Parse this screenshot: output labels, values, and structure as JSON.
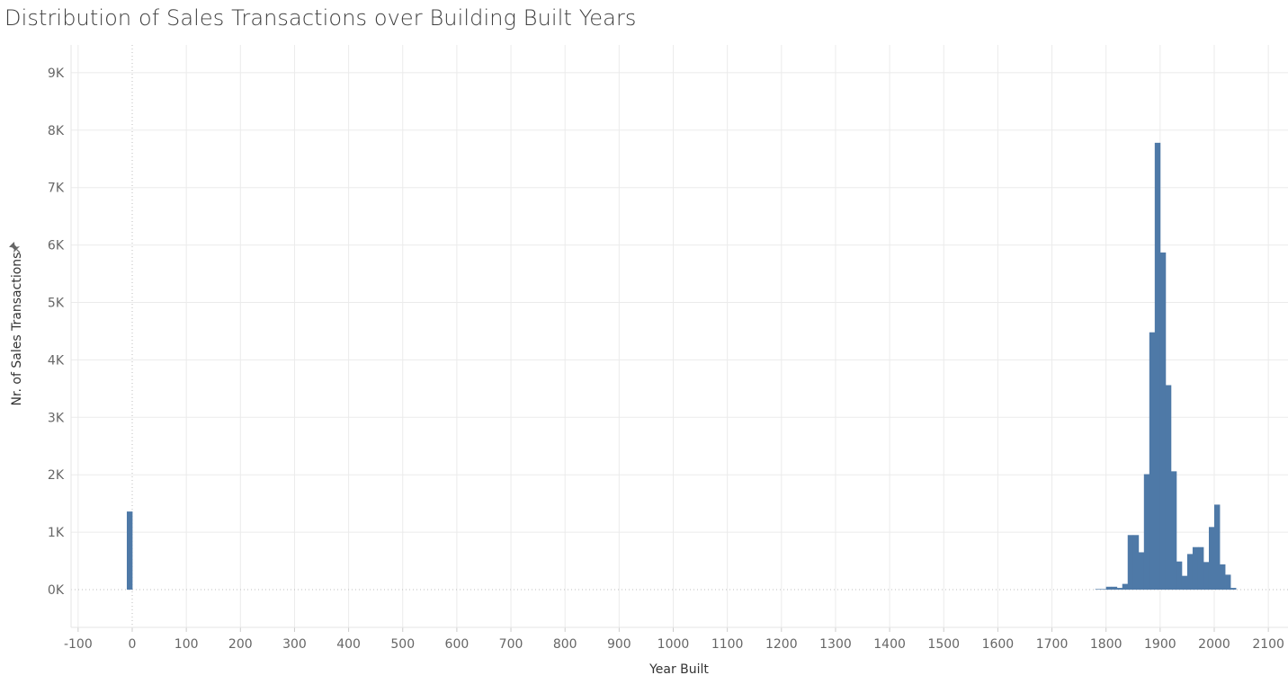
{
  "title": "Distribution of Sales Transactions over Building Built Years",
  "chart_data": {
    "type": "bar",
    "title": "Distribution of Sales Transactions over Building Built Years",
    "xlabel": "Year Built",
    "ylabel": "Nr. of Sales Transactions",
    "x_ticks": [
      -100,
      0,
      100,
      200,
      300,
      400,
      500,
      600,
      700,
      800,
      900,
      1000,
      1100,
      1200,
      1300,
      1400,
      1500,
      1600,
      1700,
      1800,
      1900,
      2000,
      2100
    ],
    "y_ticks": [
      0,
      1000,
      2000,
      3000,
      4000,
      5000,
      6000,
      7000,
      8000,
      9000
    ],
    "y_tick_labels": [
      "0K",
      "1K",
      "2K",
      "3K",
      "4K",
      "5K",
      "6K",
      "7K",
      "8K",
      "9K"
    ],
    "xlim": [
      -110,
      2135
    ],
    "ylim": [
      -650,
      9600
    ],
    "grid": true,
    "bin_width": 10,
    "color": "#4e79a7",
    "bins": [
      {
        "x": -10,
        "value": 1360
      },
      {
        "x": 1780,
        "value": 10
      },
      {
        "x": 1790,
        "value": 10
      },
      {
        "x": 1800,
        "value": 50
      },
      {
        "x": 1810,
        "value": 50
      },
      {
        "x": 1820,
        "value": 30
      },
      {
        "x": 1830,
        "value": 100
      },
      {
        "x": 1840,
        "value": 950
      },
      {
        "x": 1850,
        "value": 950
      },
      {
        "x": 1860,
        "value": 650
      },
      {
        "x": 1870,
        "value": 2010
      },
      {
        "x": 1880,
        "value": 4480
      },
      {
        "x": 1890,
        "value": 7780
      },
      {
        "x": 1900,
        "value": 5870
      },
      {
        "x": 1910,
        "value": 3560
      },
      {
        "x": 1920,
        "value": 2060
      },
      {
        "x": 1930,
        "value": 490
      },
      {
        "x": 1940,
        "value": 240
      },
      {
        "x": 1950,
        "value": 620
      },
      {
        "x": 1960,
        "value": 740
      },
      {
        "x": 1970,
        "value": 740
      },
      {
        "x": 1980,
        "value": 480
      },
      {
        "x": 1990,
        "value": 1090
      },
      {
        "x": 2000,
        "value": 1480
      },
      {
        "x": 2010,
        "value": 440
      },
      {
        "x": 2020,
        "value": 260
      },
      {
        "x": 2030,
        "value": 30
      }
    ]
  }
}
